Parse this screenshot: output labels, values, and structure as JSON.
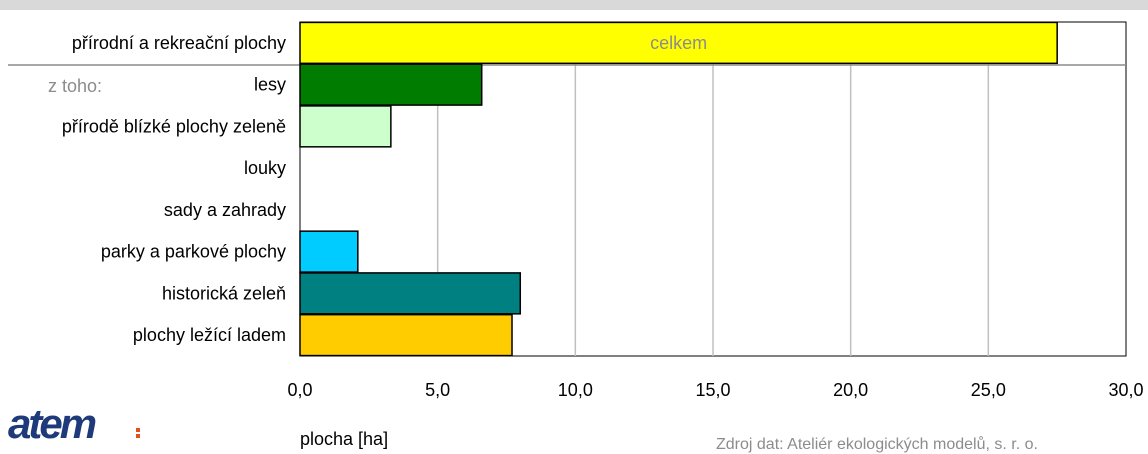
{
  "note_subset": "z toho:",
  "logo_text": "atem",
  "source_text": "Zdroj dat: Ateliér ekologických modelů, s. r. o.",
  "chart_data": {
    "type": "bar",
    "orientation": "horizontal",
    "categories": [
      "přírodní a rekreační plochy",
      "lesy",
      "přírodě blízké plochy zeleně",
      "louky",
      "sady a zahrady",
      "parky a parkové plochy",
      "historická zeleň",
      "plochy ležící ladem"
    ],
    "values": [
      27.5,
      6.6,
      3.3,
      0.0,
      0.0,
      2.1,
      8.0,
      7.7
    ],
    "colors": [
      "#ffff00",
      "#007d00",
      "#ccffcc",
      "#ffffff",
      "#ffffff",
      "#00ccff",
      "#008080",
      "#ffcc00"
    ],
    "bar_labels": [
      "celkem",
      "",
      "",
      "",
      "",
      "",
      "",
      ""
    ],
    "xlabel": "plocha [ha]",
    "xlim": [
      0,
      30
    ],
    "xticks": [
      "0,0",
      "5,0",
      "10,0",
      "15,0",
      "20,0",
      "25,0",
      "30,0"
    ],
    "grid": true
  }
}
